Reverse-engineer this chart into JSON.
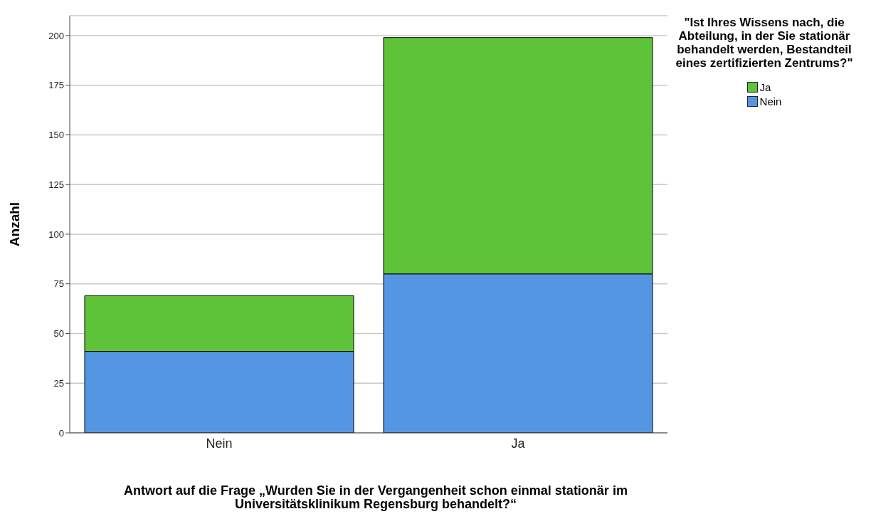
{
  "chart_data": {
    "type": "bar",
    "stacked": true,
    "xlabel": "Antwort auf die Frage „Wurden Sie in der Vergangenheit schon einmal stationär im Universitätsklinikum Regensburg behandelt?“",
    "ylabel": "Anzahl",
    "legend_title": "\"Ist Ihres Wissens nach, die Abteilung, in der Sie stationär behandelt werden, Bestandteil eines zertifizierten Zentrums?\"",
    "categories": [
      "Nein",
      "Ja"
    ],
    "series": [
      {
        "name": "Nein",
        "color": "#5596e3",
        "values": [
          41,
          80
        ]
      },
      {
        "name": "Ja",
        "color": "#5fc33a",
        "values": [
          28,
          119
        ]
      }
    ],
    "ylim": [
      0,
      210
    ],
    "yticks": [
      0,
      25,
      50,
      75,
      100,
      125,
      150,
      175,
      200
    ],
    "grid": "y",
    "legend": "top right"
  }
}
